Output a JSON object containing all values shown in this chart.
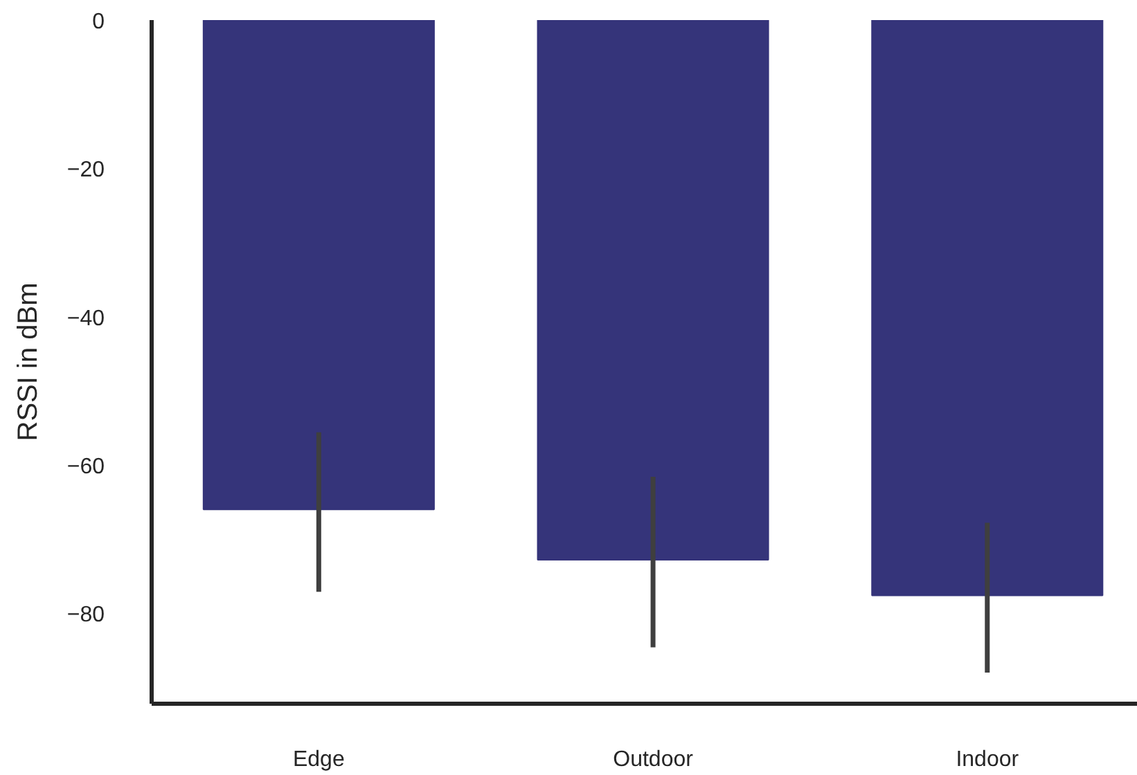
{
  "chart_data": {
    "type": "bar",
    "categories": [
      "Edge",
      "Outdoor",
      "Indoor"
    ],
    "values": [
      -66,
      -72.8,
      -77.6
    ],
    "errors": [
      [
        -77.1,
        -55.6
      ],
      [
        -84.6,
        -61.6
      ],
      [
        -88,
        -67.8
      ]
    ],
    "color": "#35347a",
    "ylabel": "RSSI in dBm",
    "ylim": [
      -92.2,
      0
    ],
    "yticks": [
      {
        "value": -80,
        "label": "−80"
      },
      {
        "value": -60,
        "label": "−60"
      },
      {
        "value": -40,
        "label": "−40"
      },
      {
        "value": -20,
        "label": "−20"
      },
      0
    ]
  }
}
